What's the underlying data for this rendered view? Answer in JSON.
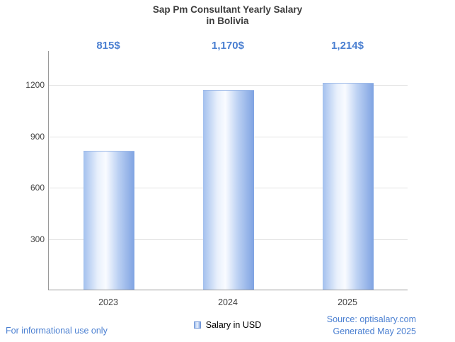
{
  "title": {
    "line1": "Sap Pm Consultant Yearly Salary",
    "line2": "in Bolivia"
  },
  "chart_data": {
    "type": "bar",
    "title": "Sap Pm Consultant Yearly Salary in Bolivia",
    "categories": [
      "2023",
      "2024",
      "2025"
    ],
    "values": [
      815,
      1170,
      1214
    ],
    "value_labels": [
      "815$",
      "1,170$",
      "1,214$"
    ],
    "series_name": "Salary in USD",
    "xlabel": "",
    "ylabel": "",
    "yticks": [
      300,
      600,
      900,
      1200
    ],
    "ylim": [
      0,
      1400
    ],
    "grid": true,
    "legend_position": "bottom"
  },
  "legend": {
    "label": "Salary in USD"
  },
  "footer": {
    "left": "For informational use only",
    "source": "Source: optisalary.com",
    "generated": "Generated May 2025"
  },
  "colors": {
    "accent_blue": "#4a7fd1",
    "bar_gradient_light": "#f9fbff",
    "bar_gradient_dark": "#7fa3e2",
    "title_text": "#3d3d3d",
    "gridline": "#e3e3e3",
    "axis": "#9a9a9a"
  }
}
